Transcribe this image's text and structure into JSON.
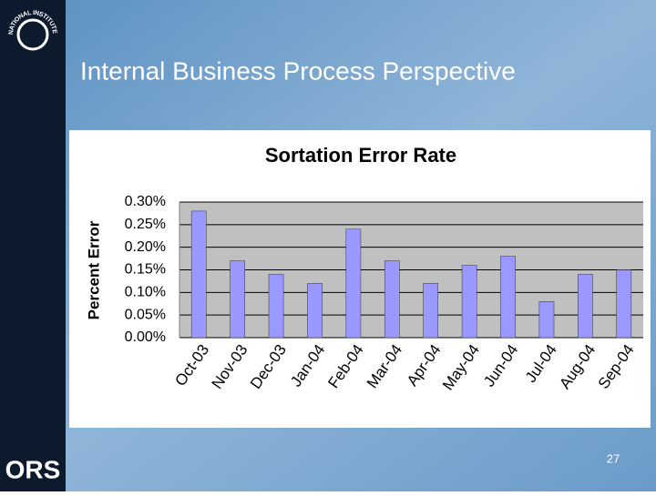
{
  "slide": {
    "title": "Internal Business Process Perspective",
    "page_number": "27",
    "logo": "ORS",
    "seal_text": "NATIONAL INSTITUTES OF HEALTH"
  },
  "chart_data": {
    "type": "bar",
    "title": "Sortation Error Rate",
    "y_label": "Percent Error",
    "categories": [
      "Oct-03",
      "Nov-03",
      "Dec-03",
      "Jan-04",
      "Feb-04",
      "Mar-04",
      "Apr-04",
      "May-04",
      "Jun-04",
      "Jul-04",
      "Aug-04",
      "Sep-04"
    ],
    "values": [
      0.28,
      0.17,
      0.14,
      0.12,
      0.24,
      0.17,
      0.12,
      0.16,
      0.18,
      0.08,
      0.14,
      0.15
    ],
    "color": "#9999ff",
    "ylim": [
      0,
      0.3
    ],
    "yticks": [
      {
        "value": 0,
        "label": "0.00%"
      },
      {
        "value": 0.05,
        "label": "0.05%"
      },
      {
        "value": 0.1,
        "label": "0.10%"
      },
      {
        "value": 0.15,
        "label": "0.15%"
      },
      {
        "value": 0.2,
        "label": "0.20%"
      },
      {
        "value": 0.25,
        "label": "0.25%"
      },
      {
        "value": 0.3,
        "label": "0.30%"
      }
    ],
    "grid": true
  }
}
